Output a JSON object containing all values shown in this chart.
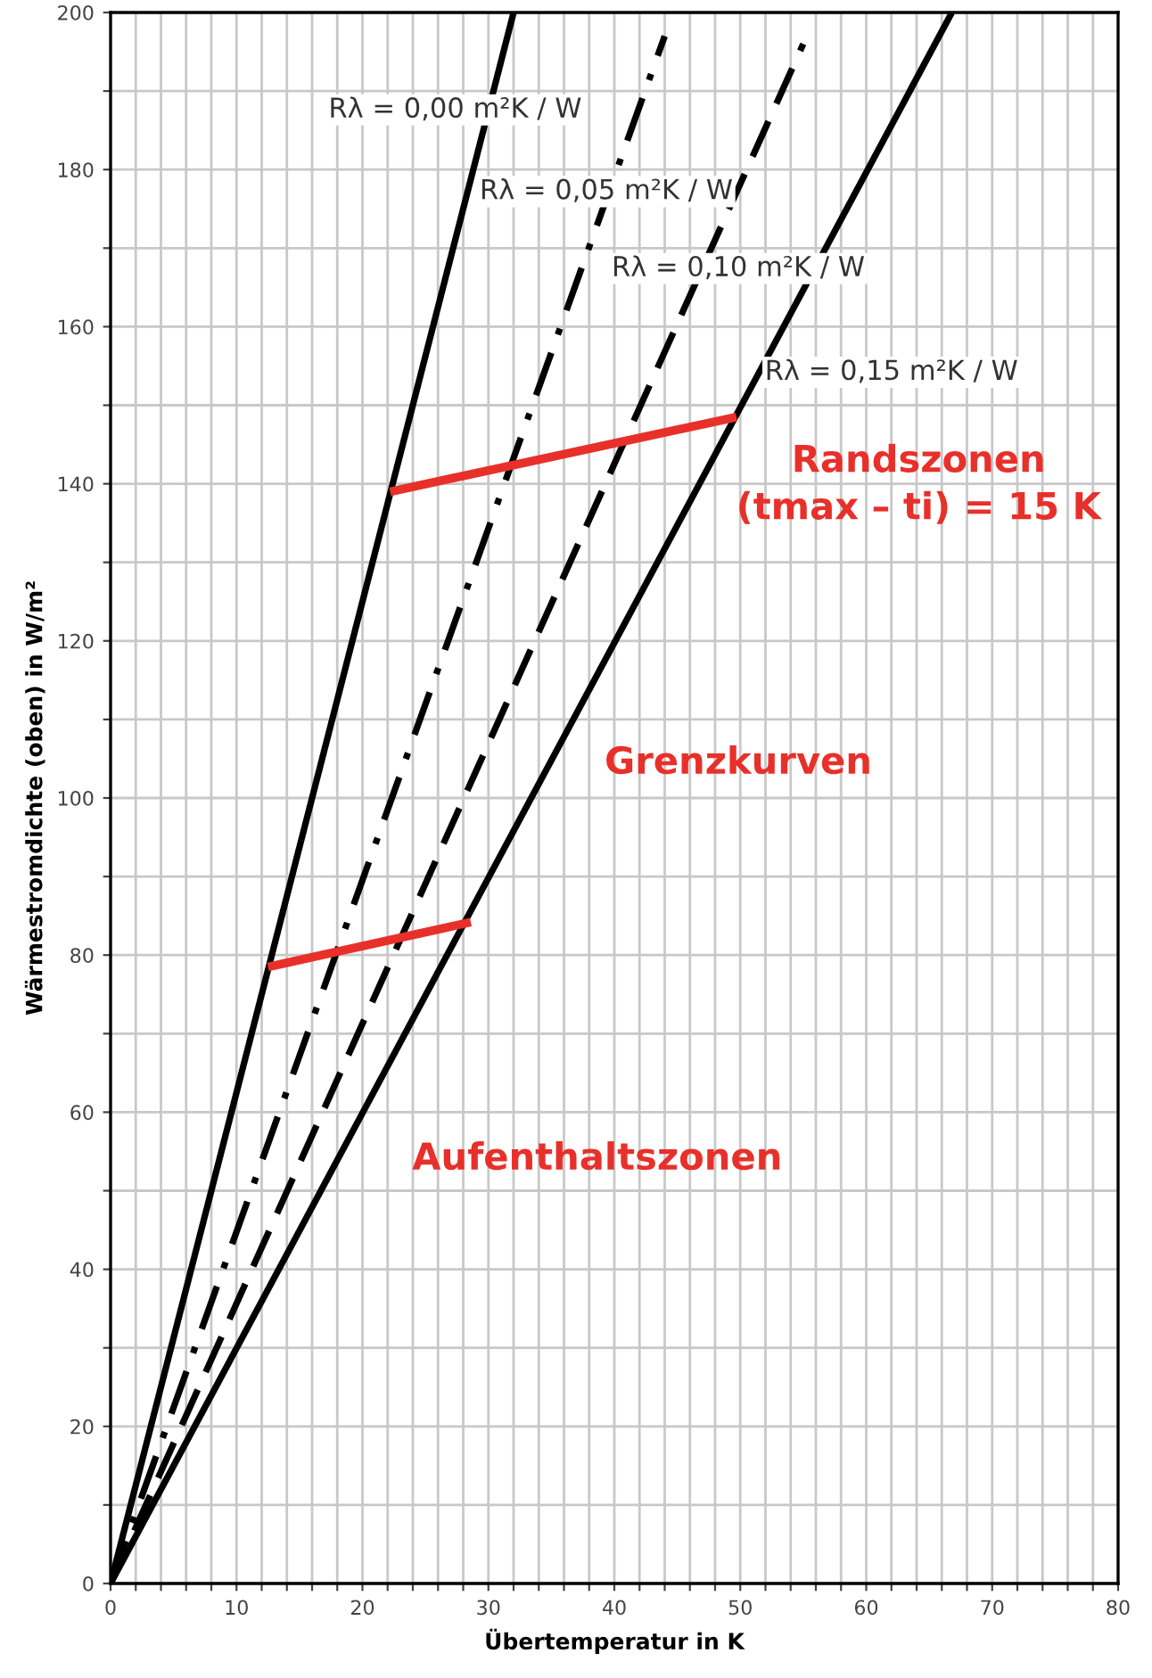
{
  "chart_data": {
    "type": "line",
    "xlabel": "Übertemperatur in K",
    "ylabel": "Wärmestromdichte (oben) in W/m²",
    "xlim": [
      0,
      80
    ],
    "ylim": [
      0,
      200
    ],
    "xticks": [
      0,
      {
        "value": 2,
        "label": null
      },
      {
        "value": 4,
        "label": null
      },
      {
        "value": 6,
        "label": null
      },
      {
        "value": 8,
        "label": null
      },
      10,
      {
        "value": 12,
        "label": null
      },
      {
        "value": 14,
        "label": null
      },
      {
        "value": 16,
        "label": null
      },
      {
        "value": 18,
        "label": null
      },
      20,
      {
        "value": 22,
        "label": null
      },
      {
        "value": 24,
        "label": null
      },
      {
        "value": 26,
        "label": null
      },
      {
        "value": 28,
        "label": null
      },
      30,
      {
        "value": 32,
        "label": null
      },
      {
        "value": 34,
        "label": null
      },
      {
        "value": 36,
        "label": null
      },
      {
        "value": 38,
        "label": null
      },
      40,
      {
        "value": 42,
        "label": null
      },
      {
        "value": 44,
        "label": null
      },
      {
        "value": 46,
        "label": null
      },
      {
        "value": 48,
        "label": null
      },
      50,
      {
        "value": 52,
        "label": null
      },
      {
        "value": 54,
        "label": null
      },
      {
        "value": 56,
        "label": null
      },
      {
        "value": 58,
        "label": null
      },
      60,
      {
        "value": 62,
        "label": null
      },
      {
        "value": 64,
        "label": null
      },
      {
        "value": 66,
        "label": null
      },
      {
        "value": 68,
        "label": null
      },
      70,
      {
        "value": 72,
        "label": null
      },
      {
        "value": 74,
        "label": null
      },
      {
        "value": 76,
        "label": null
      },
      {
        "value": 78,
        "label": null
      },
      80
    ],
    "yticks": [
      0,
      {
        "value": 10,
        "label": null
      },
      20,
      {
        "value": 30,
        "label": null
      },
      40,
      {
        "value": 50,
        "label": null
      },
      60,
      {
        "value": 70,
        "label": null
      },
      80,
      {
        "value": 90,
        "label": null
      },
      100,
      {
        "value": 110,
        "label": null
      },
      120,
      {
        "value": 130,
        "label": null
      },
      140,
      {
        "value": 150,
        "label": null
      },
      160,
      {
        "value": 170,
        "label": null
      },
      180,
      {
        "value": 190,
        "label": null
      },
      200
    ],
    "grid": true,
    "series": [
      {
        "name": "Rλ = 0,00 m²K / W",
        "color": "#000000",
        "line_style": "solid",
        "x": [
          0,
          32
        ],
        "values": [
          0,
          200
        ]
      },
      {
        "name": "Rλ = 0,05 m²K / W",
        "color": "#000000",
        "line_style": "dashdot",
        "x": [
          0,
          44
        ],
        "values": [
          0,
          197
        ]
      },
      {
        "name": "Rλ = 0,10 m²K / W",
        "color": "#000000",
        "line_style": "dashed",
        "x": [
          0,
          55
        ],
        "values": [
          0,
          196
        ]
      },
      {
        "name": "Rλ = 0,15 m²K / W",
        "color": "#000000",
        "line_style": "solid",
        "x": [
          0,
          66.8
        ],
        "values": [
          0,
          200
        ]
      },
      {
        "color": "#e8302a",
        "line_style": "solid",
        "x": [
          22.2,
          49.7
        ],
        "values": [
          139,
          148.5
        ]
      },
      {
        "color": "#e8302a",
        "line_style": "solid",
        "x": [
          12.5,
          28.6
        ],
        "values": [
          78.5,
          84.2
        ]
      }
    ],
    "annotations": [
      "Randszonen\n(tmax – ti) = 15 K",
      "Grenzkurven",
      "Aufenthaltszonen"
    ]
  }
}
